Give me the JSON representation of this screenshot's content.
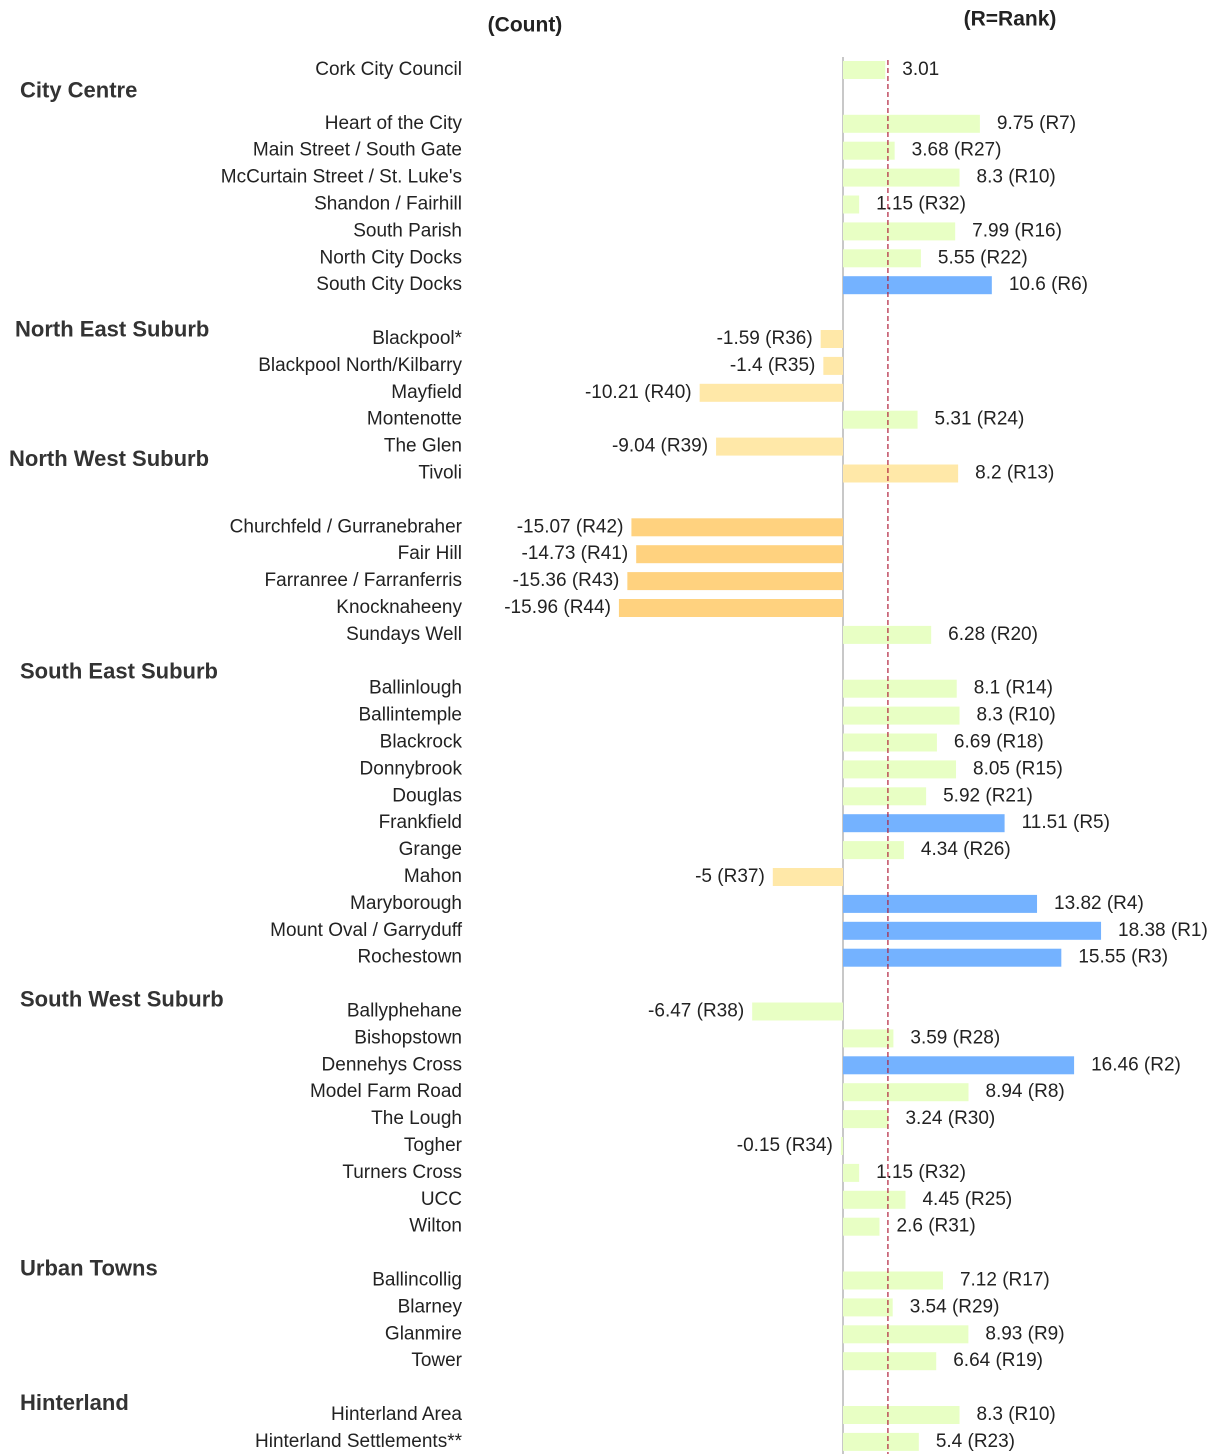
{
  "chart_data": {
    "type": "hbar",
    "header_left": "(Count)",
    "header_right": "(R=Rank)",
    "groups": [
      "City Centre",
      "North East Suburb",
      "North West Suburb",
      "South East Suburb",
      "South West Suburb",
      "Urban Towns",
      "Hinterland"
    ],
    "categories": [
      "Cork City Council",
      "Heart of the City",
      "Main Street / South Gate",
      "McCurtain Street / St. Luke's",
      "Shandon / Fairhill",
      "South Parish",
      "North City Docks",
      "South City Docks",
      "Blackpool*",
      "Blackpool North/Kilbarry",
      "Mayfield",
      "Montenotte",
      "The Glen",
      "Tivoli",
      "Churchfeld / Gurranebraher",
      "Fair Hill",
      "Farranree / Farranferris",
      "Knocknaheeny",
      "Sundays Well",
      "Ballinlough",
      "Ballintemple",
      "Blackrock",
      "Donnybrook",
      "Douglas",
      "Frankfield",
      "Grange",
      "Mahon",
      "Maryborough",
      "Mount Oval / Garryduff",
      "Rochestown",
      "Ballyphehane",
      "Bishopstown",
      "Dennehys Cross",
      "Model Farm Road",
      "The Lough",
      "Togher",
      "Turners Cross",
      "UCC",
      "Wilton",
      "Ballincollig",
      "Blarney",
      "Glanmire",
      "Tower",
      "Hinterland Area",
      "Hinterland Settlements**"
    ],
    "values": [
      3.01,
      9.75,
      3.68,
      8.3,
      1.15,
      7.99,
      5.55,
      10.6,
      -1.59,
      -1.4,
      -10.21,
      5.31,
      -9.04,
      8.2,
      -15.07,
      -14.73,
      -15.36,
      -15.96,
      6.28,
      8.1,
      8.3,
      6.69,
      8.05,
      5.92,
      11.51,
      4.34,
      -5,
      13.82,
      18.38,
      15.55,
      -6.47,
      3.59,
      16.46,
      8.94,
      3.24,
      -0.15,
      1.15,
      4.45,
      2.6,
      7.12,
      3.54,
      8.93,
      6.64,
      8.3,
      5.4
    ],
    "value_labels": [
      "3.01",
      "9.75 (R7)",
      "3.68 (R27)",
      "8.3 (R10)",
      "1.15 (R32)",
      "7.99 (R16)",
      "5.55 (R22)",
      "10.6 (R6)",
      "-1.59 (R36)",
      "-1.4 (R35)",
      "-10.21 (R40)",
      "5.31 (R24)",
      "-9.04 (R39)",
      "8.2 (R13)",
      "-15.07 (R42)",
      "-14.73 (R41)",
      "-15.36 (R43)",
      "-15.96 (R44)",
      "6.28 (R20)",
      "8.1 (R14)",
      "8.3 (R10)",
      "6.69 (R18)",
      "8.05 (R15)",
      "5.92 (R21)",
      "11.51 (R5)",
      "4.34 (R26)",
      "-5 (R37)",
      "13.82 (R4)",
      "18.38 (R1)",
      "15.55 (R3)",
      "-6.47 (R38)",
      "3.59 (R28)",
      "16.46 (R2)",
      "8.94 (R8)",
      "3.24 (R30)",
      "-0.15 (R34)",
      "1.15 (R32)",
      "4.45 (R25)",
      "2.6 (R31)",
      "7.12 (R17)",
      "3.54 (R29)",
      "8.93 (R9)",
      "6.64 (R19)",
      "8.3 (R10)",
      "5.4 (R23)"
    ],
    "colors": [
      "#e8ffc4",
      "#e8ffc4",
      "#e8ffc4",
      "#e8ffc4",
      "#e8ffc4",
      "#e8ffc4",
      "#e8ffc4",
      "#74b2ff",
      "#ffe8a8",
      "#ffe8a8",
      "#ffe8a8",
      "#e8ffc4",
      "#ffe8a8",
      "#ffe8a8",
      "#ffd27f",
      "#ffd27f",
      "#ffd27f",
      "#ffd27f",
      "#e8ffc4",
      "#e8ffc4",
      "#e8ffc4",
      "#e8ffc4",
      "#e8ffc4",
      "#e8ffc4",
      "#74b2ff",
      "#e8ffc4",
      "#ffe8a8",
      "#74b2ff",
      "#74b2ff",
      "#74b2ff",
      "#e8ffc4",
      "#e8ffc4",
      "#74b2ff",
      "#e8ffc4",
      "#e8ffc4",
      "#e8ffc4",
      "#e8ffc4",
      "#e8ffc4",
      "#e8ffc4",
      "#e8ffc4",
      "#e8ffc4",
      "#e8ffc4",
      "#e8ffc4",
      "#e8ffc4",
      "#e8ffc4"
    ],
    "reference_line": 3.2,
    "reference_color": "#b0203a"
  }
}
